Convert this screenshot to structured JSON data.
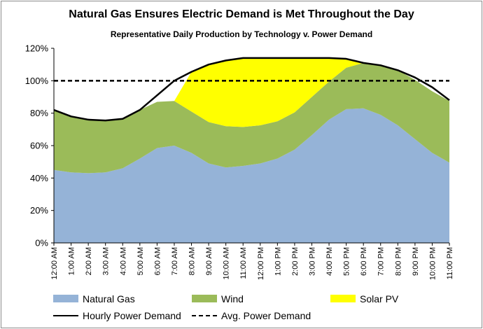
{
  "chart_data": {
    "type": "area",
    "title": "Natural Gas Ensures Electric Demand is Met Throughout the Day",
    "subtitle": "Representative Daily Production by Technology v. Power Demand",
    "xlabel": "",
    "ylabel": "",
    "ylim": [
      0,
      120
    ],
    "y_ticks": [
      "0%",
      "20%",
      "40%",
      "60%",
      "80%",
      "100%",
      "120%"
    ],
    "categories": [
      "12:00 AM",
      "1:00 AM",
      "2:00 AM",
      "3:00 AM",
      "4:00 AM",
      "5:00 AM",
      "6:00 AM",
      "7:00 AM",
      "8:00 AM",
      "9:00 AM",
      "10:00 AM",
      "11:00 AM",
      "12:00 PM",
      "1:00 PM",
      "2:00 PM",
      "3:00 PM",
      "4:00 PM",
      "5:00 PM",
      "6:00 PM",
      "7:00 PM",
      "8:00 PM",
      "9:00 PM",
      "10:00 PM",
      "11:00 PM"
    ],
    "series": [
      {
        "name": "Natural Gas",
        "kind": "stacked-area",
        "color": "#95b3d7",
        "values": [
          45,
          43.5,
          43,
          43.5,
          46,
          52,
          58.5,
          60,
          55.5,
          49,
          46.5,
          47.5,
          49,
          52,
          57.5,
          66.5,
          76,
          82.5,
          83,
          79,
          72.5,
          64,
          55.5,
          49.5
        ]
      },
      {
        "name": "Wind",
        "kind": "stacked-area",
        "color": "#9bbb59",
        "values": [
          37,
          34.5,
          33,
          32,
          30.5,
          30,
          28.5,
          27.5,
          25.5,
          25.5,
          25.5,
          24,
          23.5,
          23,
          23,
          23.5,
          23.5,
          25.5,
          28,
          31,
          34,
          36.5,
          38,
          38
        ]
      },
      {
        "name": "Solar PV",
        "kind": "stacked-area",
        "color": "#ffff00",
        "values": [
          0,
          0,
          0,
          0,
          0,
          0,
          0,
          0,
          24.5,
          35.5,
          40.5,
          42.5,
          41.5,
          39,
          33.5,
          24,
          14.5,
          5.5,
          0,
          0,
          0,
          0,
          0,
          0
        ]
      },
      {
        "name": "Hourly Power Demand",
        "kind": "line",
        "color": "#000000",
        "values": [
          82,
          78,
          76,
          75.5,
          76.5,
          82,
          91,
          100,
          105.5,
          110,
          112.5,
          114,
          114,
          114,
          114,
          114,
          114,
          113.5,
          111,
          109.5,
          106.5,
          102,
          96,
          88
        ]
      },
      {
        "name": "Avg. Power Demand",
        "kind": "dashed-line",
        "color": "#000000",
        "value": 100
      }
    ],
    "legend": {
      "position": "bottom",
      "entries": [
        "Natural Gas",
        "Wind",
        "Solar PV",
        "Hourly Power Demand",
        "Avg. Power Demand"
      ]
    }
  }
}
